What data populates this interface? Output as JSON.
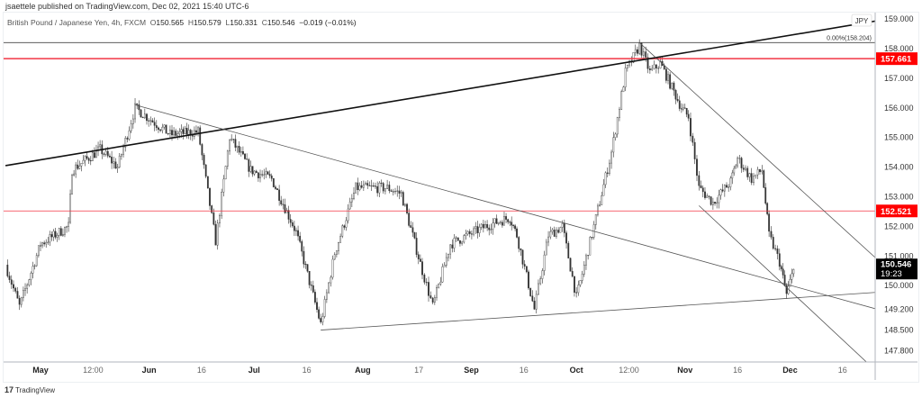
{
  "header": {
    "published": "jsaettele published on TradingView.com, Dec 02, 2021 15:40 UTC-6"
  },
  "legend": {
    "symbol": "British Pound / Japanese Yen, 4h, FXCM",
    "open_label": "O",
    "open": "150.565",
    "high_label": "H",
    "high": "150.579",
    "low_label": "L",
    "low": "150.331",
    "close_label": "C",
    "close": "150.546",
    "change": "−0.019 (−0.01%)"
  },
  "footer": {
    "logo": "17",
    "brand": "TradingView"
  },
  "chart_data": {
    "type": "candlestick",
    "currency_badge": "JPY",
    "colors": {
      "candle": "#333333",
      "level_line": "#f23645",
      "badge_bg": "#ff0000",
      "last_price_bg": "#000000"
    },
    "y_ticks": [
      "159.000",
      "158.000",
      "157.000",
      "156.000",
      "155.000",
      "154.000",
      "153.000",
      "152.000",
      "151.000",
      "150.000",
      "149.200",
      "148.500",
      "147.800"
    ],
    "y_tick_values": [
      159,
      158,
      157,
      156,
      155,
      154,
      153,
      152,
      151,
      150,
      149.2,
      148.5,
      147.8
    ],
    "x_ticks": [
      {
        "label": "May",
        "date": "2021-05-01",
        "bold": true
      },
      {
        "label": "12:00",
        "date": "2021-05-16"
      },
      {
        "label": "Jun",
        "date": "2021-06-01",
        "bold": true
      },
      {
        "label": "16",
        "date": "2021-06-16"
      },
      {
        "label": "Jul",
        "date": "2021-07-01",
        "bold": true
      },
      {
        "label": "16",
        "date": "2021-07-16"
      },
      {
        "label": "Aug",
        "date": "2021-08-01",
        "bold": true
      },
      {
        "label": "17",
        "date": "2021-08-17"
      },
      {
        "label": "Sep",
        "date": "2021-09-01",
        "bold": true
      },
      {
        "label": "16",
        "date": "2021-09-16"
      },
      {
        "label": "Oct",
        "date": "2021-10-01",
        "bold": true
      },
      {
        "label": "12:00",
        "date": "2021-10-16"
      },
      {
        "label": "Nov",
        "date": "2021-11-01",
        "bold": true
      },
      {
        "label": "16",
        "date": "2021-11-16"
      },
      {
        "label": "Dec",
        "date": "2021-12-01",
        "bold": true
      },
      {
        "label": "16",
        "date": "2021-12-16"
      }
    ],
    "price_path": [
      [
        "2021-04-21",
        150.7
      ],
      [
        "2021-04-25",
        149.3
      ],
      [
        "2021-05-01",
        151.4
      ],
      [
        "2021-05-09",
        152.0
      ],
      [
        "2021-05-10",
        153.9
      ],
      [
        "2021-05-18",
        154.6
      ],
      [
        "2021-05-23",
        154.0
      ],
      [
        "2021-05-28",
        156.0
      ],
      [
        "2021-06-07",
        155.1
      ],
      [
        "2021-06-15",
        155.2
      ],
      [
        "2021-06-20",
        151.5
      ],
      [
        "2021-06-24",
        155.0
      ],
      [
        "2021-06-30",
        153.9
      ],
      [
        "2021-07-06",
        153.6
      ],
      [
        "2021-07-13",
        151.8
      ],
      [
        "2021-07-20",
        148.7
      ],
      [
        "2021-07-24",
        151.1
      ],
      [
        "2021-07-30",
        153.3
      ],
      [
        "2021-08-08",
        153.3
      ],
      [
        "2021-08-12",
        153.1
      ],
      [
        "2021-08-18",
        150.5
      ],
      [
        "2021-08-21",
        149.3
      ],
      [
        "2021-08-26",
        151.4
      ],
      [
        "2021-09-05",
        152.0
      ],
      [
        "2021-09-12",
        152.3
      ],
      [
        "2021-09-14",
        151.7
      ],
      [
        "2021-09-19",
        149.2
      ],
      [
        "2021-09-23",
        151.7
      ],
      [
        "2021-09-27",
        152.0
      ],
      [
        "2021-10-01",
        149.6
      ],
      [
        "2021-10-06",
        152.0
      ],
      [
        "2021-10-11",
        154.5
      ],
      [
        "2021-10-15",
        157.2
      ],
      [
        "2021-10-19",
        158.1
      ],
      [
        "2021-10-22",
        157.2
      ],
      [
        "2021-10-25",
        157.5
      ],
      [
        "2021-10-31",
        156.0
      ],
      [
        "2021-11-02",
        155.7
      ],
      [
        "2021-11-05",
        153.3
      ],
      [
        "2021-11-09",
        152.8
      ],
      [
        "2021-11-14",
        153.5
      ],
      [
        "2021-11-16",
        154.3
      ],
      [
        "2021-11-20",
        153.6
      ],
      [
        "2021-11-23",
        153.9
      ],
      [
        "2021-11-25",
        151.7
      ],
      [
        "2021-11-28",
        150.8
      ],
      [
        "2021-11-30",
        149.7
      ],
      [
        "2021-12-02",
        150.546
      ]
    ],
    "horizontal_levels": [
      {
        "price": 157.661,
        "label": "157.661",
        "color": "#f23645",
        "width": 1.5
      },
      {
        "price": 152.521,
        "label": "152.521",
        "color": "#f23645",
        "width": 0.8
      }
    ],
    "fib_level": {
      "price": 158.204,
      "label": "0.00%(158.204)"
    },
    "trendlines": [
      {
        "from": [
          "2021-04-21",
          154.05
        ],
        "to": [
          "2021-12-29",
          159.0
        ],
        "color": "#111111",
        "width": 1.6
      },
      {
        "from": [
          "2021-05-28",
          156.1
        ],
        "to": [
          "2021-12-29",
          149.1
        ],
        "color": "#555555",
        "width": 0.8
      },
      {
        "from": [
          "2021-07-20",
          148.5
        ],
        "to": [
          "2021-12-29",
          149.8
        ],
        "color": "#555555",
        "width": 0.8
      },
      {
        "from": [
          "2021-10-19",
          158.2
        ],
        "to": [
          "2021-12-29",
          150.55
        ],
        "color": "#555555",
        "width": 0.8
      },
      {
        "from": [
          "2021-11-05",
          152.7
        ],
        "to": [
          "2021-12-23",
          147.4
        ],
        "color": "#555555",
        "width": 0.8
      }
    ],
    "last_price": {
      "value": "150.546",
      "countdown": "19:23"
    }
  }
}
